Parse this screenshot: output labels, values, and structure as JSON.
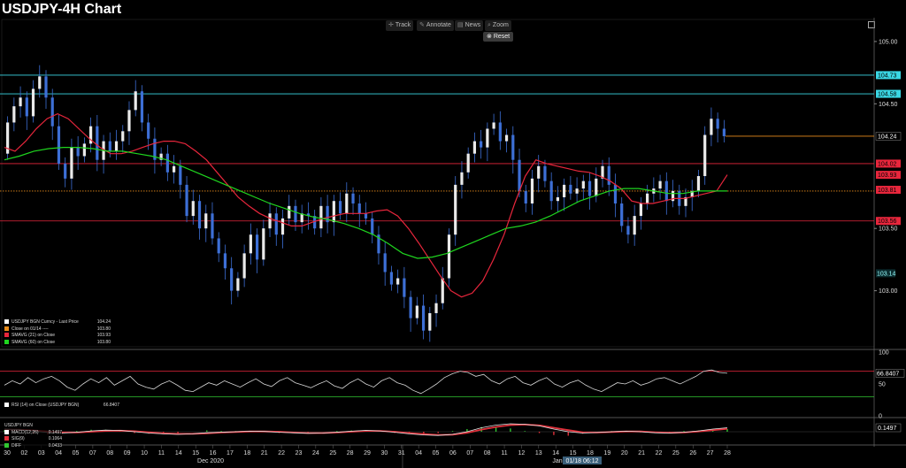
{
  "title": "USDJPY-4H Chart",
  "toolbar": {
    "track": "Track",
    "annotate": "Annotate",
    "news": "News",
    "zoom": "Zoom",
    "reset": "Reset"
  },
  "colors": {
    "bg": "#000000",
    "candle": "#3d6fd6",
    "sma21": "#e8263c",
    "sma60": "#1fd61f",
    "cyan": "#3ad7e4",
    "red_level": "#e8263c",
    "orange": "#e98d1b",
    "rsi": "#d8d8d8",
    "macd_up": "#31c631",
    "macd_dn": "#e0303a"
  },
  "chart_data": [
    {
      "type": "line",
      "title": "USDJPY-4H Chart",
      "ylim": [
        102.55,
        105.12
      ],
      "y_ticks": [
        "105.00",
        "104.50",
        "103.50",
        "103.00"
      ],
      "x_labels": [
        "30",
        "02",
        "03",
        "04",
        "05",
        "07",
        "08",
        "09",
        "10",
        "11",
        "14",
        "15",
        "16",
        "17",
        "18",
        "21",
        "22",
        "23",
        "24",
        "25",
        "28",
        "29",
        "30",
        "31",
        "04",
        "05",
        "06",
        "07",
        "08",
        "11",
        "12",
        "13",
        "14",
        "15",
        "18",
        "19",
        "20",
        "21",
        "22",
        "25",
        "26",
        "27",
        "28"
      ],
      "month_labels": [
        "Dec 2020",
        "Jan"
      ],
      "crosshair_label": "01/18 06:12",
      "horizontal_lines": [
        {
          "value": 104.73,
          "label": "104.73",
          "color": "cyan"
        },
        {
          "value": 104.58,
          "label": "104.58",
          "color": "cyan"
        },
        {
          "value": 104.02,
          "label": "104.02",
          "color": "red"
        },
        {
          "value": 103.56,
          "label": "103.56",
          "color": "red"
        },
        {
          "value": 103.8,
          "label": "",
          "color": "orange"
        }
      ],
      "value_tags": [
        {
          "value": 104.24,
          "label": "104.24",
          "kind": "price"
        },
        {
          "value": 103.93,
          "label": "103.93",
          "kind": "sma21"
        },
        {
          "value": 103.81,
          "label": "103.81",
          "kind": "orange"
        },
        {
          "value": 103.14,
          "label": "103.14",
          "kind": "price_plain"
        }
      ],
      "legend": [
        {
          "name": "USDJPY BGN Curncy - Last Price",
          "value": "104.24",
          "color": "#ffffff"
        },
        {
          "name": "Close on 01/14 ----",
          "value": "103.80",
          "color": "#e98d1b"
        },
        {
          "name": "SMAVG (21)  on Close",
          "value": "103.93",
          "color": "#e8263c"
        },
        {
          "name": "SMAVG (60)  on Close",
          "value": "103.80",
          "color": "#1fd61f"
        }
      ],
      "price_path": [
        104.1,
        104.35,
        104.48,
        104.55,
        104.4,
        104.62,
        104.72,
        104.55,
        104.32,
        104.02,
        103.9,
        104.15,
        104.08,
        104.18,
        104.32,
        104.05,
        104.2,
        104.12,
        104.2,
        104.28,
        104.45,
        104.6,
        104.35,
        104.22,
        104.05,
        104.1,
        103.95,
        104.0,
        103.85,
        103.6,
        103.72,
        103.5,
        103.62,
        103.42,
        103.3,
        103.18,
        103.0,
        103.1,
        103.3,
        103.45,
        103.25,
        103.5,
        103.62,
        103.45,
        103.58,
        103.68,
        103.55,
        103.62,
        103.6,
        103.5,
        103.68,
        103.55,
        103.72,
        103.62,
        103.78,
        103.7,
        103.62,
        103.58,
        103.45,
        103.3,
        103.15,
        103.05,
        103.1,
        102.95,
        102.78,
        102.88,
        102.68,
        102.82,
        102.9,
        103.1,
        103.45,
        103.85,
        103.95,
        104.1,
        104.2,
        104.15,
        104.3,
        104.35,
        104.2,
        104.25,
        104.05,
        103.8,
        103.7,
        103.9,
        104.0,
        103.88,
        103.72,
        103.75,
        103.85,
        103.78,
        103.82,
        103.88,
        103.76,
        103.9,
        104.0,
        103.85,
        103.7,
        103.52,
        103.45,
        103.6,
        103.7,
        103.78,
        103.82,
        103.88,
        103.72,
        103.8,
        103.68,
        103.75,
        103.8,
        103.92,
        104.25,
        104.38,
        104.3,
        104.24
      ],
      "sma21_path": [
        104.15,
        104.12,
        104.2,
        104.3,
        104.38,
        104.42,
        104.38,
        104.3,
        104.22,
        104.15,
        104.1,
        104.1,
        104.12,
        104.15,
        104.18,
        104.2,
        104.2,
        104.18,
        104.12,
        104.05,
        103.95,
        103.85,
        103.75,
        103.68,
        103.62,
        103.58,
        103.55,
        103.52,
        103.52,
        103.55,
        103.58,
        103.6,
        103.62,
        103.62,
        103.62,
        103.64,
        103.65,
        103.6,
        103.5,
        103.38,
        103.25,
        103.12,
        103.0,
        102.95,
        102.98,
        103.08,
        103.25,
        103.45,
        103.7,
        103.92,
        104.05,
        104.02,
        104.0,
        103.98,
        103.96,
        103.95,
        103.92,
        103.88,
        103.82,
        103.72,
        103.7,
        103.7,
        103.72,
        103.74,
        103.74,
        103.76,
        103.78,
        103.8,
        103.93
      ],
      "sma60_path": [
        104.05,
        104.08,
        104.12,
        104.14,
        104.15,
        104.15,
        104.14,
        104.12,
        104.12,
        104.1,
        104.08,
        104.05,
        104.0,
        103.95,
        103.9,
        103.85,
        103.8,
        103.75,
        103.7,
        103.66,
        103.62,
        103.59,
        103.57,
        103.54,
        103.5,
        103.45,
        103.38,
        103.3,
        103.26,
        103.27,
        103.3,
        103.35,
        103.4,
        103.45,
        103.5,
        103.52,
        103.55,
        103.6,
        103.66,
        103.72,
        103.76,
        103.8,
        103.82,
        103.82,
        103.8,
        103.78,
        103.78,
        103.8,
        103.8,
        103.8
      ]
    },
    {
      "type": "line",
      "title": "RSI",
      "ylim": [
        0,
        100
      ],
      "y_ticks": [
        "100",
        "50",
        "0"
      ],
      "legend": [
        {
          "name": "RSI (14)  on Close (USDJPY BGN)",
          "value": "66.8407",
          "color": "#ffffff"
        }
      ],
      "value_tag": "66.8407",
      "levels": [
        70,
        30
      ],
      "values": [
        48,
        55,
        50,
        60,
        52,
        58,
        62,
        55,
        45,
        40,
        50,
        58,
        52,
        60,
        48,
        55,
        62,
        50,
        45,
        42,
        50,
        55,
        48,
        40,
        38,
        45,
        52,
        48,
        55,
        50,
        45,
        52,
        58,
        50,
        46,
        55,
        60,
        52,
        48,
        44,
        50,
        55,
        47,
        43,
        52,
        58,
        50,
        45,
        55,
        60,
        52,
        48,
        40,
        35,
        42,
        50,
        60,
        66,
        70,
        68,
        62,
        65,
        55,
        50,
        58,
        62,
        52,
        48,
        55,
        60,
        50,
        45,
        52,
        56,
        48,
        42,
        38,
        45,
        52,
        50,
        55,
        48,
        52,
        58,
        60,
        55,
        50,
        56,
        62,
        70,
        72,
        68,
        66.8
      ]
    },
    {
      "type": "line",
      "title": "MACD",
      "legend": [
        {
          "name": "USDJPY BGN",
          "value": "",
          "color": ""
        },
        {
          "name": "MACD(12,26)",
          "value": "0.1497",
          "color": "#ffffff"
        },
        {
          "name": "SIG(9)",
          "value": "0.1064",
          "color": "#e0303a"
        },
        {
          "name": "DIFF",
          "value": "0.0433",
          "color": "#31c631"
        }
      ],
      "value_tag": "0.1497",
      "macd": [
        0.1,
        0.08,
        0.02,
        -0.03,
        -0.05,
        -0.02,
        0.03,
        0.06,
        0.05,
        0.0,
        -0.05,
        -0.08,
        -0.1,
        -0.08,
        -0.04,
        -0.02,
        0.0,
        0.02,
        0.01,
        -0.02,
        -0.04,
        -0.06,
        -0.05,
        -0.02,
        0.02,
        0.05,
        0.03,
        -0.02,
        -0.08,
        -0.12,
        -0.14,
        -0.1,
        0.0,
        0.15,
        0.25,
        0.3,
        0.28,
        0.22,
        0.1,
        0.0,
        -0.05,
        -0.03,
        0.0,
        0.02,
        0.0,
        -0.04,
        -0.05,
        -0.02,
        0.03,
        0.1,
        0.15
      ],
      "signal": [
        0.08,
        0.08,
        0.05,
        0.01,
        -0.02,
        -0.03,
        0.0,
        0.03,
        0.04,
        0.02,
        -0.02,
        -0.06,
        -0.08,
        -0.08,
        -0.06,
        -0.03,
        -0.01,
        0.01,
        0.01,
        0.0,
        -0.03,
        -0.05,
        -0.05,
        -0.03,
        0.0,
        0.03,
        0.03,
        0.0,
        -0.05,
        -0.09,
        -0.12,
        -0.11,
        -0.04,
        0.08,
        0.18,
        0.25,
        0.27,
        0.24,
        0.15,
        0.06,
        -0.02,
        -0.03,
        -0.01,
        0.01,
        0.01,
        -0.02,
        -0.04,
        -0.03,
        0.01,
        0.06,
        0.11
      ]
    }
  ]
}
